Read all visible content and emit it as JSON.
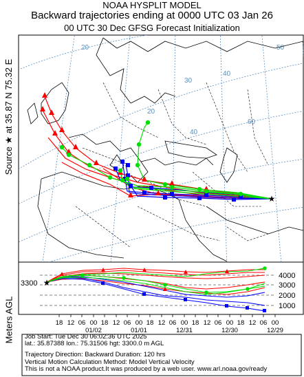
{
  "header": {
    "line1": "NOAA HYSPLIT MODEL",
    "line2": "Backward trajectories ending at 0000 UTC 03 Jan 26",
    "line3": "00 UTC 30 Dec     GFSG  Forecast Initialization"
  },
  "side_label": "Source ★ at    35.87 N    75.32 E",
  "height_axis": {
    "label": "Meters AGL",
    "source_height": "3300",
    "ticks": [
      "4000",
      "3000",
      "2000",
      "1000"
    ]
  },
  "time_axis": {
    "hour_labels": [
      "18",
      "12",
      "06",
      "00",
      "18",
      "12",
      "06",
      "00",
      "18",
      "12",
      "06",
      "00",
      "18",
      "12",
      "06",
      "00",
      "18",
      "12",
      "06",
      "00"
    ],
    "date_labels": [
      "01/02",
      "01/01",
      "12/31",
      "12/30",
      "12/29"
    ]
  },
  "map_graticule_labels": [
    "20",
    "20",
    "30",
    "40",
    "50",
    "40",
    "60"
  ],
  "footer": {
    "line1": "Job Start: Tue Dec 30 06:02:36 UTC 2025",
    "line2": "lat.: 35.87388   lon.: 75.31506   hgt: 3300.0 m AGL",
    "line3": "Trajectory Direction: Backward       Duration: 120 hrs",
    "line4": "Vertical Motion Calculation Method: Model Vertical Velocity",
    "line5": "This is not a NOAA product.It was produced by a web user. www.arl.noaa.gov/ready"
  },
  "colors": {
    "red": "#ff0000",
    "blue": "#0000ff",
    "green": "#00e000",
    "graticule": "#5b8fbf",
    "coast": "#000000"
  },
  "trajectory_colors": [
    "red",
    "blue",
    "green"
  ]
}
